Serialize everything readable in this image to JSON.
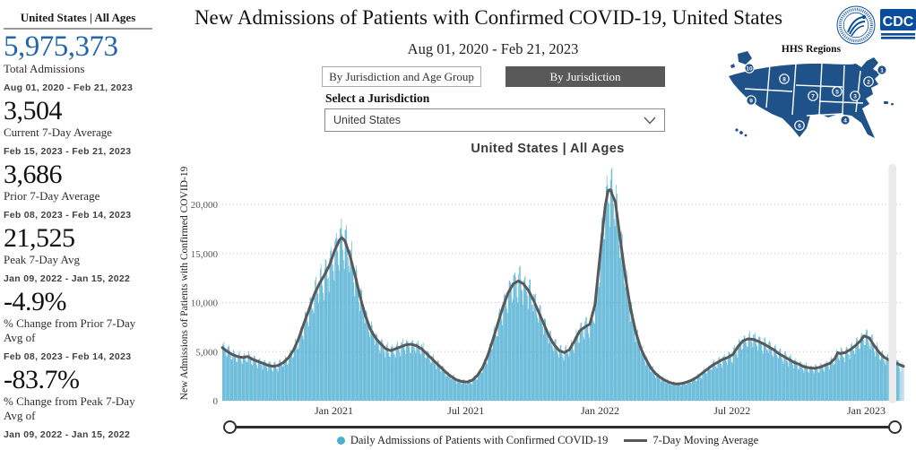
{
  "header": {
    "title": "New Admissions of Patients with Confirmed COVID-19, United States",
    "subtitle": "Aug 01, 2020 - Feb 21, 2023",
    "cdc_logo_text": "CDC"
  },
  "sidebar": {
    "header": "United States | All Ages",
    "stats": [
      {
        "value": "5,975,373",
        "label": "Total Admissions",
        "range": "Aug 01, 2020 - Feb 21, 2023",
        "accent": "#2065ae"
      },
      {
        "value": "3,504",
        "label": "Current 7-Day Average",
        "range": "Feb 15, 2023 - Feb 21, 2023"
      },
      {
        "value": "3,686",
        "label": "Prior 7-Day Average",
        "range": "Feb 08, 2023 - Feb 14, 2023"
      },
      {
        "value": "21,525",
        "label": "Peak 7-Day Avg",
        "range": "Jan 09, 2022 - Jan 15, 2022"
      },
      {
        "value": "-4.9%",
        "label": "% Change from Prior 7-Day Avg of",
        "range": "Feb 08, 2023 - Feb 14, 2023"
      },
      {
        "value": "-83.7%",
        "label": "% Change from Peak 7-Day Avg of",
        "range": "Jan 09, 2022 - Jan 15, 2022"
      }
    ]
  },
  "controls": {
    "tabs": [
      {
        "label": "By Jurisdiction and Age Group",
        "selected": false
      },
      {
        "label": "By Jurisdiction",
        "selected": true
      }
    ],
    "select_label": "Select a Jurisdiction",
    "jurisdiction_value": "United States"
  },
  "map": {
    "title": "HHS Regions",
    "region_labels": [
      "1",
      "2",
      "3",
      "4",
      "5",
      "6",
      "7",
      "8",
      "9",
      "10"
    ],
    "fill_color": "#1e5288"
  },
  "chart_heading": "United States | All Ages",
  "chart_data": {
    "type": "bar",
    "title": "United States | All Ages",
    "xlabel": "",
    "ylabel": "New Admissions of Patients with Confirmed COVID-19",
    "x_start": "2020-08-01",
    "x_end": "2023-02-21",
    "ylim": [
      0,
      24000
    ],
    "y_ticks": [
      0,
      5000,
      10000,
      15000,
      20000
    ],
    "x_ticks": [
      {
        "label": "Jan 2021",
        "date": "2021-01-01"
      },
      {
        "label": "Jul 2021",
        "date": "2021-07-01"
      },
      {
        "label": "Jan 2022",
        "date": "2022-01-01"
      },
      {
        "label": "Jul 2022",
        "date": "2022-07-01"
      },
      {
        "label": "Jan 2023",
        "date": "2023-01-01"
      }
    ],
    "grid": "dotted-horizontal",
    "legend_position": "bottom",
    "bar_color": "#4fafd3",
    "bar_color_recent": "#a9d5e8",
    "line_color": "#595959",
    "weekly_pattern": [
      0.05,
      0.09,
      0.11,
      0.03,
      -0.04,
      -0.1,
      -0.15
    ],
    "series": [
      {
        "name": "Daily Admissions of Patients with Confirmed COVID-19",
        "type": "bar",
        "note": "daily bars derived from 7-day moving average plus weekly_pattern variation"
      },
      {
        "name": "7-Day Moving Average",
        "type": "line",
        "points": [
          [
            "2020-08-01",
            5400
          ],
          [
            "2020-08-08",
            5000
          ],
          [
            "2020-08-15",
            4700
          ],
          [
            "2020-08-22",
            4500
          ],
          [
            "2020-08-29",
            4400
          ],
          [
            "2020-09-05",
            4500
          ],
          [
            "2020-09-12",
            4200
          ],
          [
            "2020-09-19",
            4000
          ],
          [
            "2020-09-26",
            3800
          ],
          [
            "2020-10-03",
            3600
          ],
          [
            "2020-10-10",
            3500
          ],
          [
            "2020-10-17",
            3600
          ],
          [
            "2020-10-24",
            3900
          ],
          [
            "2020-10-31",
            4400
          ],
          [
            "2020-11-07",
            5200
          ],
          [
            "2020-11-14",
            6400
          ],
          [
            "2020-11-21",
            7900
          ],
          [
            "2020-11-28",
            9300
          ],
          [
            "2020-12-05",
            10800
          ],
          [
            "2020-12-12",
            11900
          ],
          [
            "2020-12-19",
            12800
          ],
          [
            "2020-12-26",
            13800
          ],
          [
            "2021-01-02",
            15300
          ],
          [
            "2021-01-09",
            16400
          ],
          [
            "2021-01-12",
            16600
          ],
          [
            "2021-01-16",
            16300
          ],
          [
            "2021-01-23",
            14800
          ],
          [
            "2021-01-30",
            12800
          ],
          [
            "2021-02-06",
            10600
          ],
          [
            "2021-02-13",
            8700
          ],
          [
            "2021-02-20",
            7300
          ],
          [
            "2021-02-27",
            6400
          ],
          [
            "2021-03-06",
            5800
          ],
          [
            "2021-03-13",
            5300
          ],
          [
            "2021-03-20",
            5100
          ],
          [
            "2021-03-27",
            5300
          ],
          [
            "2021-04-03",
            5500
          ],
          [
            "2021-04-10",
            5700
          ],
          [
            "2021-04-17",
            5750
          ],
          [
            "2021-04-24",
            5600
          ],
          [
            "2021-05-01",
            5300
          ],
          [
            "2021-05-08",
            4800
          ],
          [
            "2021-05-15",
            4300
          ],
          [
            "2021-05-22",
            3800
          ],
          [
            "2021-05-29",
            3300
          ],
          [
            "2021-06-05",
            2800
          ],
          [
            "2021-06-12",
            2400
          ],
          [
            "2021-06-19",
            2100
          ],
          [
            "2021-06-26",
            1950
          ],
          [
            "2021-07-03",
            1900
          ],
          [
            "2021-07-10",
            2100
          ],
          [
            "2021-07-17",
            2600
          ],
          [
            "2021-07-24",
            3400
          ],
          [
            "2021-07-31",
            4600
          ],
          [
            "2021-08-07",
            6200
          ],
          [
            "2021-08-14",
            7900
          ],
          [
            "2021-08-21",
            9600
          ],
          [
            "2021-08-28",
            11000
          ],
          [
            "2021-09-04",
            11900
          ],
          [
            "2021-09-11",
            12200
          ],
          [
            "2021-09-18",
            11900
          ],
          [
            "2021-09-25",
            11200
          ],
          [
            "2021-10-02",
            10200
          ],
          [
            "2021-10-09",
            9000
          ],
          [
            "2021-10-16",
            7800
          ],
          [
            "2021-10-23",
            6600
          ],
          [
            "2021-10-30",
            5700
          ],
          [
            "2021-11-06",
            5100
          ],
          [
            "2021-11-13",
            4900
          ],
          [
            "2021-11-20",
            5200
          ],
          [
            "2021-11-27",
            6100
          ],
          [
            "2021-12-04",
            7100
          ],
          [
            "2021-12-11",
            7500
          ],
          [
            "2021-12-18",
            7800
          ],
          [
            "2021-12-25",
            9800
          ],
          [
            "2022-01-01",
            14800
          ],
          [
            "2022-01-08",
            19800
          ],
          [
            "2022-01-12",
            21400
          ],
          [
            "2022-01-15",
            21500
          ],
          [
            "2022-01-22",
            20200
          ],
          [
            "2022-01-29",
            16300
          ],
          [
            "2022-02-05",
            12500
          ],
          [
            "2022-02-12",
            9300
          ],
          [
            "2022-02-19",
            7000
          ],
          [
            "2022-02-26",
            5300
          ],
          [
            "2022-03-05",
            4200
          ],
          [
            "2022-03-12",
            3300
          ],
          [
            "2022-03-19",
            2700
          ],
          [
            "2022-03-26",
            2300
          ],
          [
            "2022-04-02",
            2000
          ],
          [
            "2022-04-09",
            1800
          ],
          [
            "2022-04-16",
            1700
          ],
          [
            "2022-04-23",
            1750
          ],
          [
            "2022-04-30",
            1900
          ],
          [
            "2022-05-07",
            2100
          ],
          [
            "2022-05-14",
            2400
          ],
          [
            "2022-05-21",
            2800
          ],
          [
            "2022-05-28",
            3200
          ],
          [
            "2022-06-04",
            3600
          ],
          [
            "2022-06-11",
            3900
          ],
          [
            "2022-06-18",
            4200
          ],
          [
            "2022-06-25",
            4400
          ],
          [
            "2022-07-02",
            4700
          ],
          [
            "2022-07-09",
            5500
          ],
          [
            "2022-07-16",
            6100
          ],
          [
            "2022-07-23",
            6300
          ],
          [
            "2022-07-30",
            6250
          ],
          [
            "2022-08-06",
            6050
          ],
          [
            "2022-08-13",
            5800
          ],
          [
            "2022-08-20",
            5500
          ],
          [
            "2022-08-27",
            5200
          ],
          [
            "2022-09-03",
            4800
          ],
          [
            "2022-09-10",
            4500
          ],
          [
            "2022-09-17",
            4200
          ],
          [
            "2022-09-24",
            3900
          ],
          [
            "2022-10-01",
            3700
          ],
          [
            "2022-10-08",
            3450
          ],
          [
            "2022-10-15",
            3350
          ],
          [
            "2022-10-22",
            3300
          ],
          [
            "2022-10-29",
            3400
          ],
          [
            "2022-11-05",
            3600
          ],
          [
            "2022-11-12",
            3800
          ],
          [
            "2022-11-19",
            4300
          ],
          [
            "2022-11-23",
            4900
          ],
          [
            "2022-11-26",
            4800
          ],
          [
            "2022-12-03",
            4900
          ],
          [
            "2022-12-10",
            5200
          ],
          [
            "2022-12-17",
            5600
          ],
          [
            "2022-12-24",
            6100
          ],
          [
            "2022-12-29",
            6600
          ],
          [
            "2023-01-05",
            6400
          ],
          [
            "2023-01-12",
            5600
          ],
          [
            "2023-01-19",
            4900
          ],
          [
            "2023-01-26",
            4400
          ],
          [
            "2023-02-02",
            4100
          ],
          [
            "2023-02-09",
            3900
          ],
          [
            "2023-02-16",
            3650
          ],
          [
            "2023-02-21",
            3504
          ]
        ]
      }
    ]
  }
}
